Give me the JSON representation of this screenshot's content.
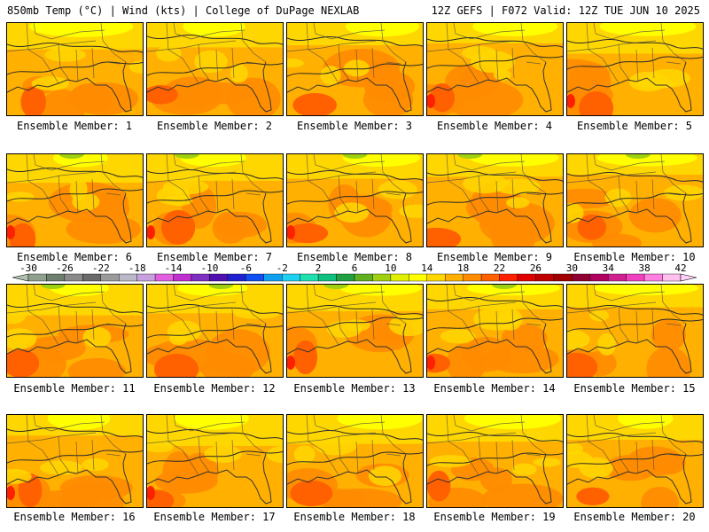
{
  "header": {
    "left": "850mb Temp (°C) | Wind (kts) | College of DuPage NEXLAB",
    "right": "12Z GEFS | F072 Valid: 12Z TUE JUN 10 2025"
  },
  "panels": [
    {
      "caption": "Ensemble Member: 1"
    },
    {
      "caption": "Ensemble Member: 2"
    },
    {
      "caption": "Ensemble Member: 3"
    },
    {
      "caption": "Ensemble Member: 4"
    },
    {
      "caption": "Ensemble Member: 5"
    },
    {
      "caption": "Ensemble Member: 6"
    },
    {
      "caption": "Ensemble Member: 7"
    },
    {
      "caption": "Ensemble Member: 8"
    },
    {
      "caption": "Ensemble Member: 9"
    },
    {
      "caption": "Ensemble Member: 10"
    },
    {
      "caption": "Ensemble Member: 11"
    },
    {
      "caption": "Ensemble Member: 12"
    },
    {
      "caption": "Ensemble Member: 13"
    },
    {
      "caption": "Ensemble Member: 14"
    },
    {
      "caption": "Ensemble Member: 15"
    },
    {
      "caption": "Ensemble Member: 16"
    },
    {
      "caption": "Ensemble Member: 17"
    },
    {
      "caption": "Ensemble Member: 18"
    },
    {
      "caption": "Ensemble Member: 19"
    },
    {
      "caption": "Ensemble Member: 20"
    }
  ],
  "colorbar": {
    "labels": [
      "-30",
      "-26",
      "-22",
      "-18",
      "-14",
      "-10",
      "-6",
      "-2",
      "2",
      "6",
      "10",
      "14",
      "18",
      "22",
      "26",
      "30",
      "34",
      "38",
      "42"
    ],
    "colors": [
      "#8fa08f",
      "#6f7f6f",
      "#8a8a8a",
      "#6a6a6a",
      "#9a9a9a",
      "#b8b8c8",
      "#c8a0e0",
      "#e060e0",
      "#c030d0",
      "#8030c0",
      "#5010b0",
      "#2020d0",
      "#1050f0",
      "#10a0f0",
      "#20d0f0",
      "#20e0b0",
      "#10c080",
      "#20a040",
      "#60b020",
      "#a0d010",
      "#e0f000",
      "#ffff00",
      "#ffd700",
      "#ffb000",
      "#ff8c00",
      "#ff6000",
      "#ff2000",
      "#e00000",
      "#c00000",
      "#a00000",
      "#900030",
      "#b00060",
      "#d02090",
      "#f040c0",
      "#ff80e0",
      "#ffc0f0"
    ]
  }
}
